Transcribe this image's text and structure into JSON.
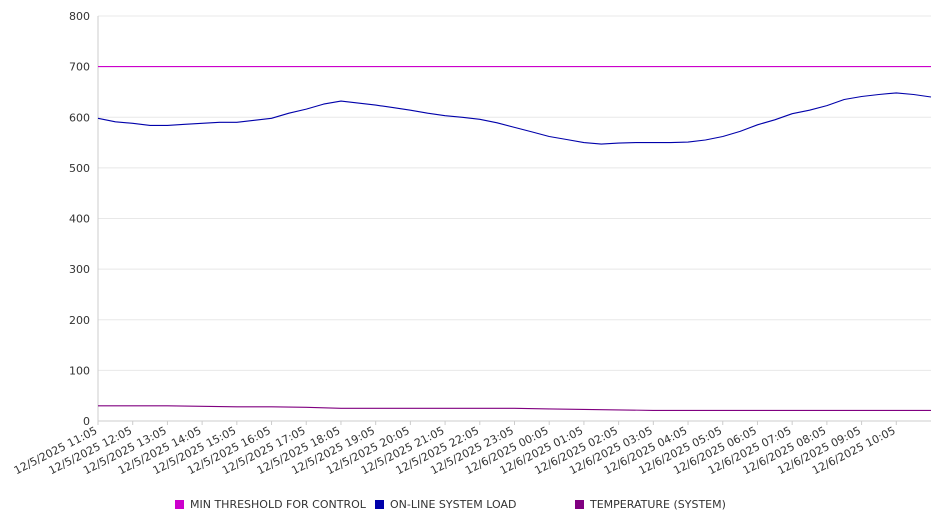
{
  "chart_data": {
    "type": "line",
    "title": "",
    "xlabel": "",
    "ylabel": "",
    "ylim": [
      0,
      800
    ],
    "y_ticks": [
      "0",
      "100",
      "200",
      "300",
      "400",
      "500",
      "600",
      "700",
      "800"
    ],
    "grid": true,
    "legend_position": "bottom",
    "x_tick_labels": [
      "12/5/2025 11:05",
      "12/5/2025 12:05",
      "12/5/2025 13:05",
      "12/5/2025 14:05",
      "12/5/2025 15:05",
      "12/5/2025 16:05",
      "12/5/2025 17:05",
      "12/5/2025 18:05",
      "12/5/2025 19:05",
      "12/5/2025 20:05",
      "12/5/2025 21:05",
      "12/5/2025 22:05",
      "12/5/2025 23:05",
      "12/6/2025 00:05",
      "12/6/2025 01:05",
      "12/6/2025 02:05",
      "12/6/2025 03:05",
      "12/6/2025 04:05",
      "12/6/2025 05:05",
      "12/6/2025 06:05",
      "12/6/2025 07:05",
      "12/6/2025 08:05",
      "12/6/2025 09:05",
      "12/6/2025 10:05"
    ],
    "x_range": [
      "12/5/2025 11:05",
      "12/6/2025 11:05"
    ],
    "series": [
      {
        "name": "MIN THRESHOLD FOR CONTROL",
        "color": "#cc00cc",
        "x": [
          "12/5/2025 11:05",
          "12/6/2025 11:05"
        ],
        "values": [
          700,
          700
        ]
      },
      {
        "name": "ON-LINE SYSTEM LOAD",
        "color": "#0000aa",
        "x": [
          "12/5/2025 11:05",
          "12/5/2025 11:35",
          "12/5/2025 12:05",
          "12/5/2025 12:35",
          "12/5/2025 13:05",
          "12/5/2025 13:35",
          "12/5/2025 14:05",
          "12/5/2025 14:35",
          "12/5/2025 15:05",
          "12/5/2025 15:35",
          "12/5/2025 16:05",
          "12/5/2025 16:35",
          "12/5/2025 17:05",
          "12/5/2025 17:35",
          "12/5/2025 18:05",
          "12/5/2025 18:35",
          "12/5/2025 19:05",
          "12/5/2025 19:35",
          "12/5/2025 20:05",
          "12/5/2025 20:35",
          "12/5/2025 21:05",
          "12/5/2025 21:35",
          "12/5/2025 22:05",
          "12/5/2025 22:35",
          "12/5/2025 23:05",
          "12/5/2025 23:35",
          "12/6/2025 00:05",
          "12/6/2025 00:35",
          "12/6/2025 01:05",
          "12/6/2025 01:35",
          "12/6/2025 02:05",
          "12/6/2025 02:35",
          "12/6/2025 03:05",
          "12/6/2025 03:35",
          "12/6/2025 04:05",
          "12/6/2025 04:35",
          "12/6/2025 05:05",
          "12/6/2025 05:35",
          "12/6/2025 06:05",
          "12/6/2025 06:35",
          "12/6/2025 07:05",
          "12/6/2025 07:35",
          "12/6/2025 08:05",
          "12/6/2025 08:35",
          "12/6/2025 09:05",
          "12/6/2025 09:35",
          "12/6/2025 10:05",
          "12/6/2025 10:35",
          "12/6/2025 11:05"
        ],
        "values": [
          598,
          591,
          588,
          584,
          584,
          586,
          588,
          590,
          590,
          594,
          598,
          608,
          616,
          626,
          632,
          628,
          624,
          619,
          614,
          608,
          603,
          600,
          596,
          589,
          580,
          571,
          562,
          556,
          550,
          547,
          549,
          550,
          550,
          550,
          551,
          555,
          562,
          572,
          585,
          595,
          607,
          614,
          623,
          635,
          641,
          645,
          648,
          645,
          640
        ]
      },
      {
        "name": "TEMPERATURE (SYSTEM)",
        "color": "#800080",
        "x": [
          "12/5/2025 11:05",
          "12/5/2025 12:05",
          "12/5/2025 13:05",
          "12/5/2025 14:05",
          "12/5/2025 15:05",
          "12/5/2025 16:05",
          "12/5/2025 17:05",
          "12/5/2025 18:05",
          "12/5/2025 19:05",
          "12/5/2025 20:05",
          "12/5/2025 21:05",
          "12/5/2025 22:05",
          "12/5/2025 23:05",
          "12/6/2025 00:05",
          "12/6/2025 01:05",
          "12/6/2025 02:05",
          "12/6/2025 03:05",
          "12/6/2025 04:05",
          "12/6/2025 05:05",
          "12/6/2025 06:05",
          "12/6/2025 07:05",
          "12/6/2025 08:05",
          "12/6/2025 09:05",
          "12/6/2025 10:05",
          "12/6/2025 11:05"
        ],
        "values": [
          30,
          30,
          30,
          29,
          28,
          28,
          27,
          25,
          25,
          25,
          25,
          25,
          25,
          24,
          23,
          22,
          21,
          21,
          21,
          21,
          21,
          21,
          21,
          21,
          21
        ]
      }
    ]
  }
}
